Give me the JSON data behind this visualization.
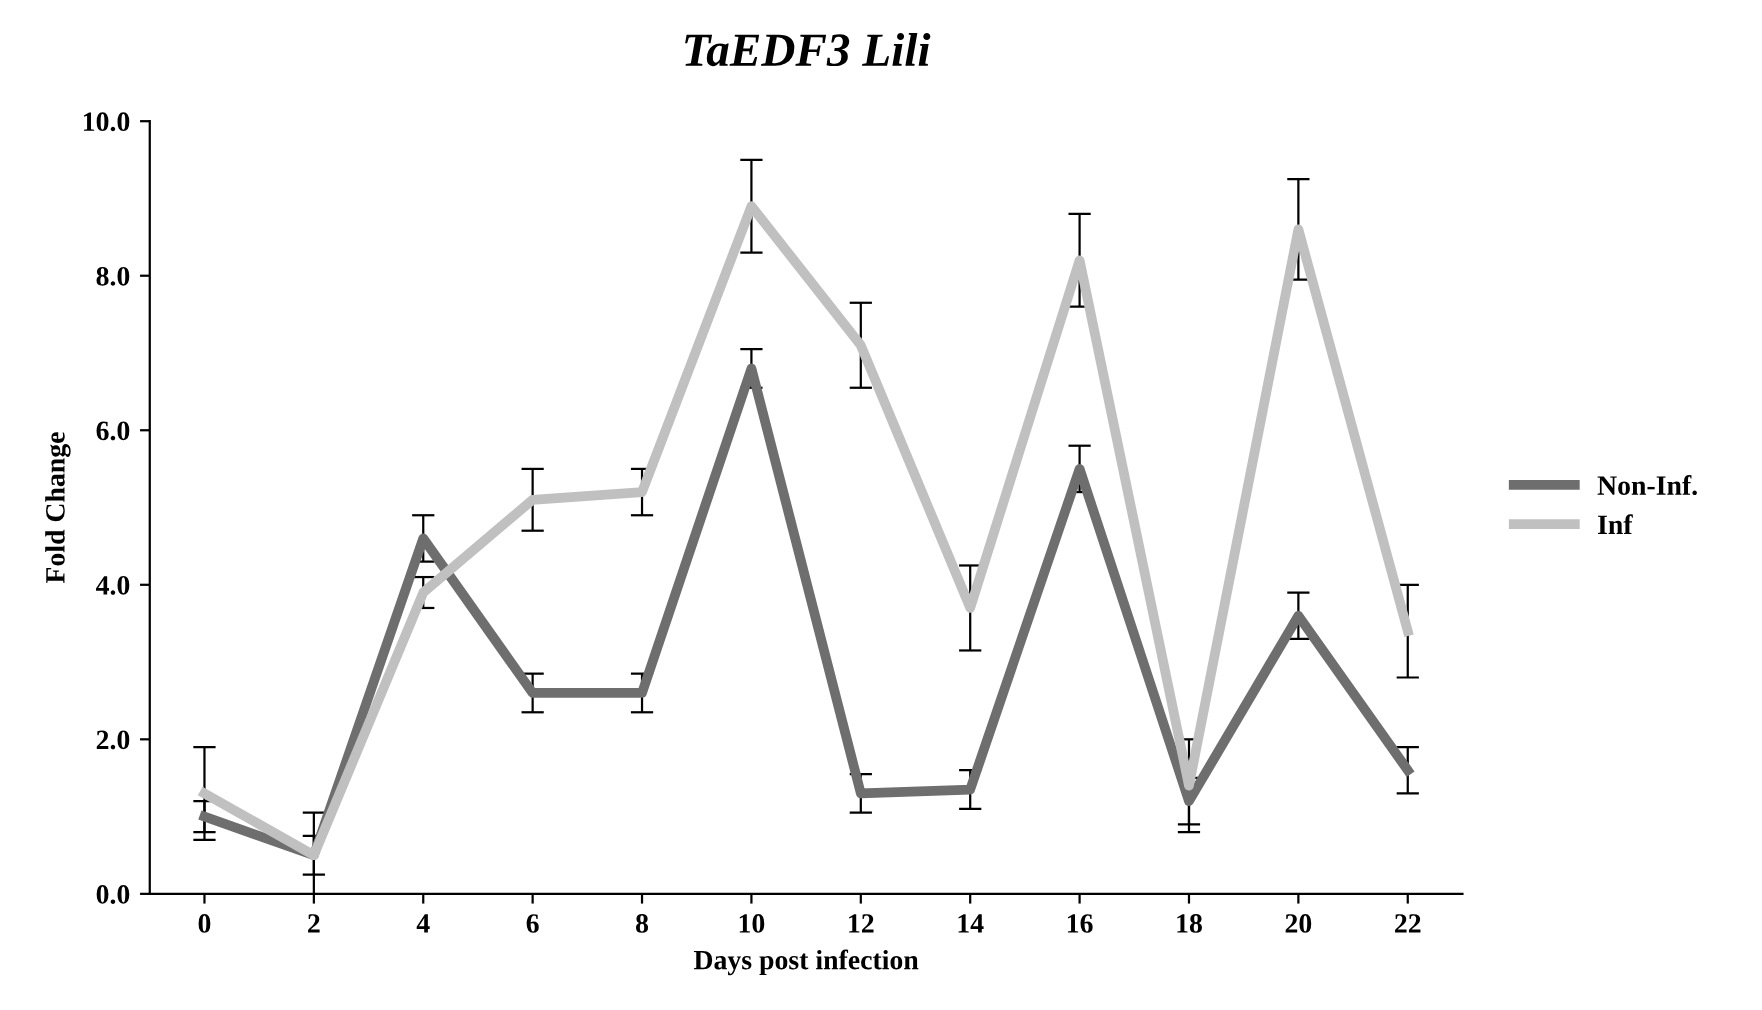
{
  "chart_data": {
    "type": "line",
    "title": "TaEDF3 Lili",
    "xlabel": "Days post infection",
    "ylabel": "Fold Change",
    "categories": [
      "0",
      "2",
      "4",
      "6",
      "8",
      "10",
      "12",
      "14",
      "16",
      "18",
      "20",
      "22"
    ],
    "series": [
      {
        "name": "Non-Inf.",
        "color": "#6e6e6e",
        "values": [
          1.0,
          0.5,
          4.6,
          2.6,
          2.6,
          6.8,
          1.3,
          1.35,
          5.5,
          1.2,
          3.6,
          1.6
        ],
        "errors": [
          0.2,
          0.25,
          0.3,
          0.25,
          0.25,
          0.25,
          0.25,
          0.25,
          0.3,
          0.3,
          0.3,
          0.3
        ]
      },
      {
        "name": "Inf",
        "color": "#c0c0c0",
        "values": [
          1.3,
          0.5,
          3.9,
          5.1,
          5.2,
          8.9,
          7.1,
          3.7,
          8.2,
          1.4,
          8.6,
          3.4
        ],
        "errors": [
          0.6,
          0.55,
          0.2,
          0.4,
          0.3,
          0.6,
          0.55,
          0.55,
          0.6,
          0.6,
          0.65,
          0.6
        ]
      }
    ],
    "ylim": [
      0,
      10
    ],
    "yticks": [
      {
        "value": 0,
        "label": "0.0"
      },
      {
        "value": 2,
        "label": "2.0"
      },
      {
        "value": 4,
        "label": "4.0"
      },
      {
        "value": 6,
        "label": "6.0"
      },
      {
        "value": 8,
        "label": "8.0"
      },
      {
        "value": 10,
        "label": "10.0"
      }
    ],
    "grid": false,
    "legend": "right",
    "marker": "none",
    "line_style": "solid"
  }
}
